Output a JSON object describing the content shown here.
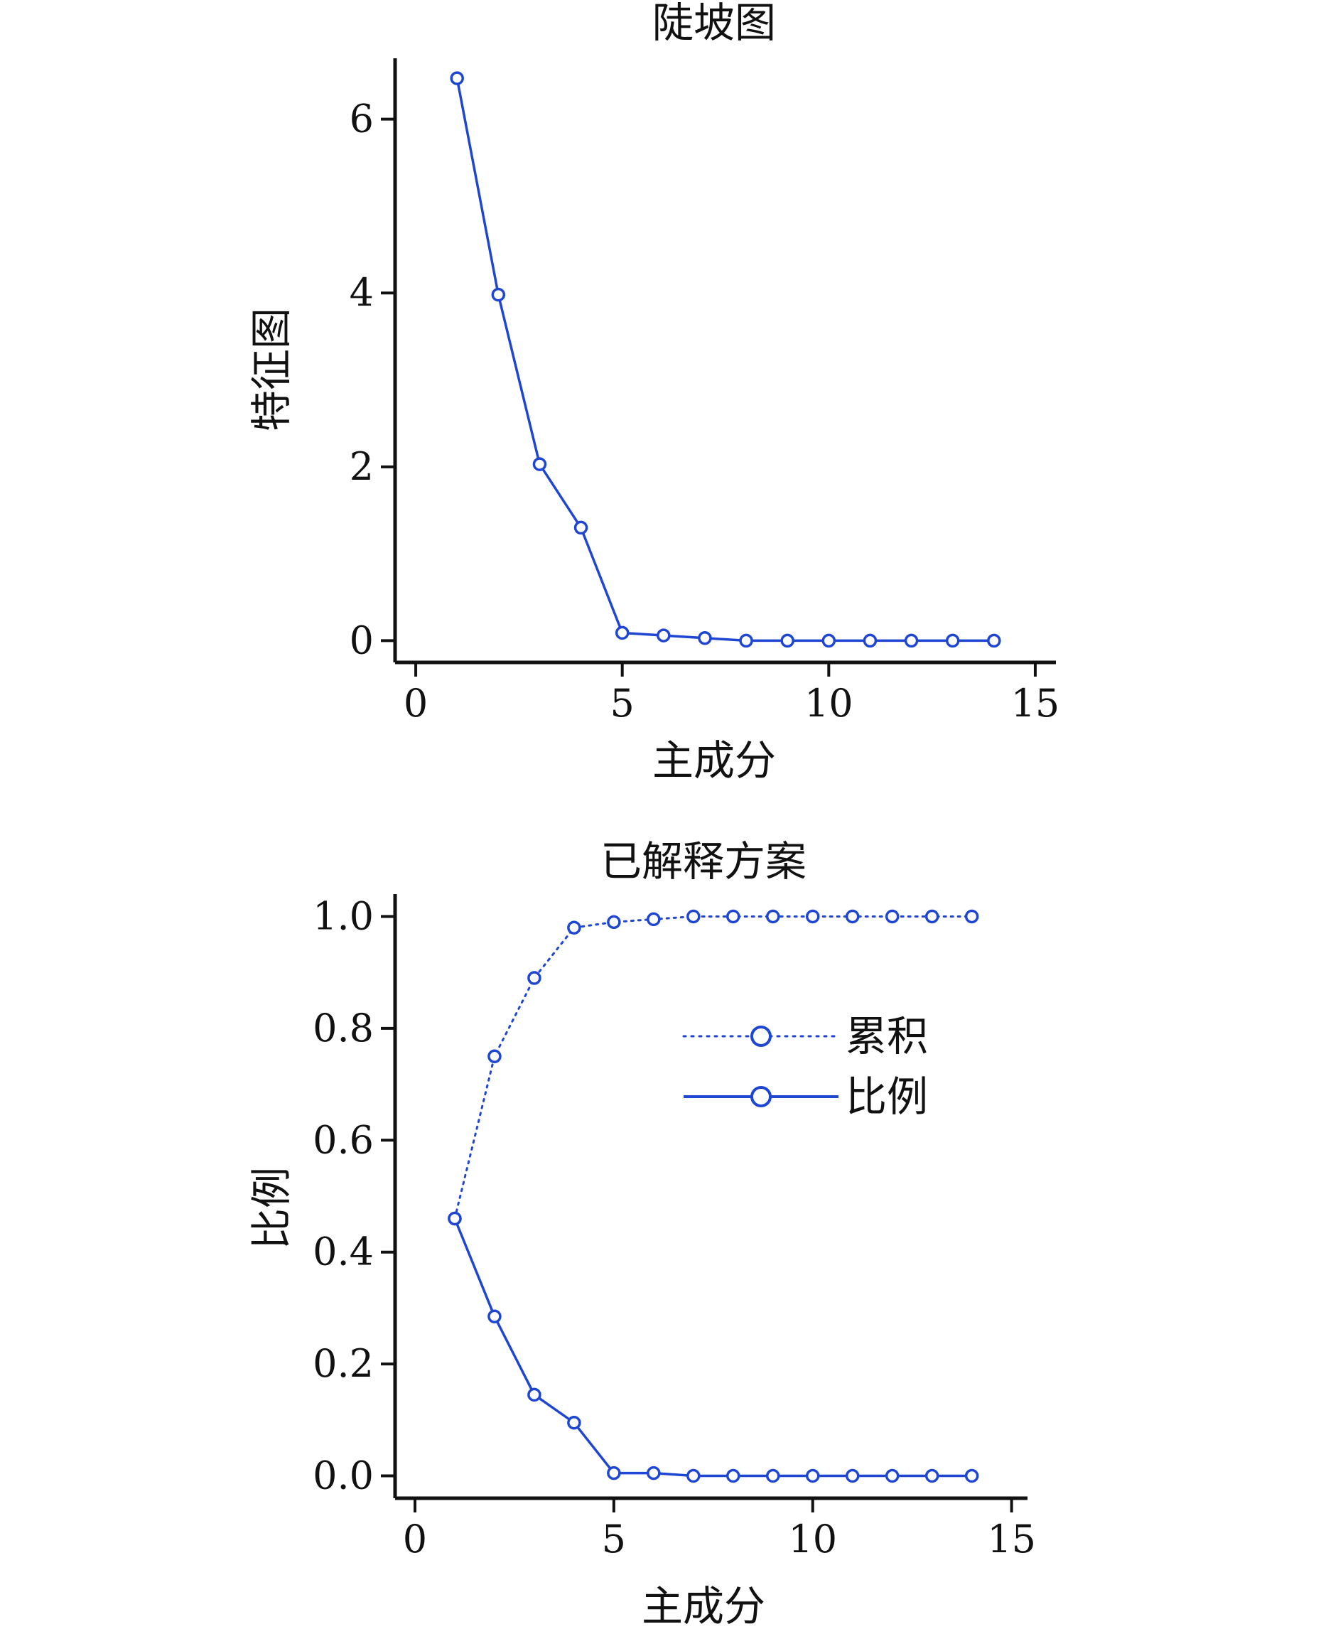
{
  "colors": {
    "series": "#1e46d2",
    "axis": "#111111"
  },
  "chart_data": [
    {
      "type": "line",
      "title": "陡坡图",
      "xlabel": "主成分",
      "ylabel": "特征图",
      "xlim": [
        -0.5,
        15.5
      ],
      "ylim": [
        -0.25,
        6.7
      ],
      "xticks": [
        0,
        5,
        10,
        15
      ],
      "yticks": [
        0,
        2,
        4,
        6
      ],
      "ytick_labels": [
        "0",
        "2",
        "4",
        "6"
      ],
      "grid": false,
      "series": [
        {
          "x": [
            1,
            2,
            3,
            4,
            5,
            6,
            7,
            8,
            9,
            10,
            11,
            12,
            13,
            14
          ],
          "values": [
            6.47,
            3.98,
            2.03,
            1.3,
            0.09,
            0.06,
            0.03,
            0.0,
            0.0,
            0.0,
            0.0,
            0.0,
            0.0,
            0.0
          ],
          "style": "solid",
          "marker": "circle"
        }
      ]
    },
    {
      "type": "line",
      "title": "已解释方案",
      "xlabel": "主成分",
      "ylabel": "比例",
      "xlim": [
        -0.5,
        15.4
      ],
      "ylim": [
        -0.04,
        1.04
      ],
      "xticks": [
        0,
        5,
        10,
        15
      ],
      "yticks": [
        0.0,
        0.2,
        0.4,
        0.6,
        0.8,
        1.0
      ],
      "ytick_labels": [
        "0.0",
        "0.2",
        "0.4",
        "0.6",
        "0.8",
        "1.0"
      ],
      "grid": false,
      "legend": "center-right",
      "series": [
        {
          "name": "累积",
          "x": [
            1,
            2,
            3,
            4,
            5,
            6,
            7,
            8,
            9,
            10,
            11,
            12,
            13,
            14
          ],
          "values": [
            0.46,
            0.75,
            0.89,
            0.98,
            0.99,
            0.995,
            1.0,
            1.0,
            1.0,
            1.0,
            1.0,
            1.0,
            1.0,
            1.0
          ],
          "style": "dotted",
          "marker": "circle"
        },
        {
          "name": "比例",
          "x": [
            1,
            2,
            3,
            4,
            5,
            6,
            7,
            8,
            9,
            10,
            11,
            12,
            13,
            14
          ],
          "values": [
            0.46,
            0.285,
            0.145,
            0.095,
            0.005,
            0.005,
            0.0,
            0.0,
            0.0,
            0.0,
            0.0,
            0.0,
            0.0,
            0.0
          ],
          "style": "solid",
          "marker": "circle"
        }
      ]
    }
  ]
}
